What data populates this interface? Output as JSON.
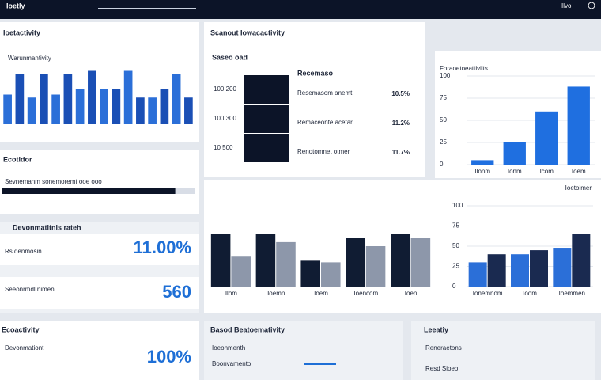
{
  "header": {
    "brand": "Ioetly",
    "user": "Ilvo"
  },
  "activity": {
    "title": "Ioetactivity",
    "subtitle": "Warunmantivity"
  },
  "progress": {
    "title": "Ecotidor",
    "label": "Sevnemanm sonemoremt ooe ooo",
    "value": 90
  },
  "stats": {
    "title": "Devonmatitnis rateh",
    "items": [
      {
        "label": "Rs denmosin",
        "value": "11.00%"
      },
      {
        "label": "Seeonrmdl nimen",
        "value": "560"
      }
    ]
  },
  "table": {
    "title": "Scanout Iowacactivity",
    "header": "Saseo oad",
    "column": "Recemaso",
    "rows": [
      {
        "id": "100 200",
        "name": "Resemasom anemt",
        "value": "10.5%"
      },
      {
        "id": "100 300",
        "name": "Remaceonte acetar",
        "value": "11.2%"
      },
      {
        "id": "10 500",
        "name": "Renotomnet otmer",
        "value": "11.7%"
      }
    ]
  },
  "bottom_left": {
    "title": "Ecoactivity",
    "label": "Devonmationt",
    "value": "100%"
  },
  "bottom_mid": {
    "title": "Basod Beatoemativity",
    "rows": [
      "Ioeonmenth",
      "Boonvamento"
    ]
  },
  "bottom_right": {
    "title": "Leeatiy",
    "rows": [
      "Reneraetons",
      "Resd Sioeo"
    ]
  },
  "chart_data": [
    {
      "type": "bar",
      "ylim": [
        0,
        100
      ],
      "colors": [
        "#2b6fd8",
        "#1a4fb5"
      ],
      "values": [
        50,
        85,
        45,
        85,
        50,
        85,
        60,
        90,
        60,
        60,
        90,
        45,
        45,
        60,
        85,
        45
      ]
    },
    {
      "type": "bar",
      "title": "Foraoetoeattivilts",
      "color": "#1f6fe0",
      "ylim": [
        0,
        100
      ],
      "yticks": [
        0,
        25,
        50,
        75,
        100
      ],
      "categories": [
        "Ilonm",
        "Ionm",
        "Icom",
        "Ioem"
      ],
      "values": [
        5,
        25,
        60,
        88
      ]
    },
    {
      "type": "grouped",
      "ylim": [
        0,
        100
      ],
      "categories": [
        "Ilom",
        "Ioemn",
        "Ioem",
        "Ioencom",
        "Ioen"
      ],
      "series": [
        {
          "color": "#101c33",
          "values": [
            65,
            65,
            32,
            60,
            65
          ]
        },
        {
          "color": "#8d97aa",
          "values": [
            38,
            55,
            30,
            50,
            60
          ]
        }
      ]
    },
    {
      "type": "grouped",
      "title": "Ioetoimer",
      "ylim": [
        0,
        100
      ],
      "yticks": [
        0,
        25,
        50,
        75,
        100
      ],
      "categories": [
        "Ionemnom",
        "Ioom",
        "Ioemmen"
      ],
      "series": [
        {
          "color": "#2b6fd8",
          "values": [
            30,
            40,
            48
          ]
        },
        {
          "color": "#1a2a50",
          "values": [
            40,
            45,
            65
          ]
        }
      ]
    }
  ]
}
